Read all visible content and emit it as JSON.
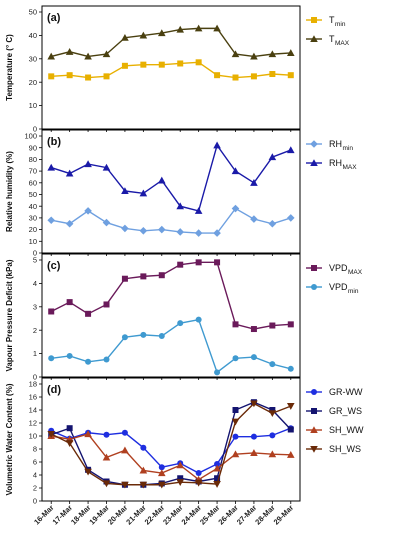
{
  "x_categories": [
    "16-Mar",
    "17-Mar",
    "18-Mar",
    "19-Mar",
    "20-Mar",
    "21-Mar",
    "22-Mar",
    "23-Mar",
    "24-Mar",
    "25-Mar",
    "26-Mar",
    "27-Mar",
    "28-Mar",
    "29-Mar"
  ],
  "chart_data": [
    {
      "type": "line",
      "panel_label": "(a)",
      "ylabel": "Temperature (° C)",
      "ylim": [
        0,
        50
      ],
      "yticks": [
        0,
        10,
        20,
        30,
        40,
        50
      ],
      "grid": false,
      "legend_position": "right",
      "series": [
        {
          "name": "T",
          "sub": "min",
          "color": "#e8b000",
          "marker": "square",
          "values": [
            22.5,
            23,
            22,
            22.5,
            27,
            27.5,
            27.5,
            28,
            28.5,
            23,
            22,
            22.5,
            23.5,
            23
          ]
        },
        {
          "name": "T",
          "sub": "MAX",
          "color": "#4a4010",
          "marker": "triangle",
          "values": [
            31,
            33,
            31,
            32,
            39,
            40,
            41,
            42.5,
            43,
            43,
            32,
            31,
            32,
            32.5
          ]
        }
      ]
    },
    {
      "type": "line",
      "panel_label": "(b)",
      "ylabel": "Relative humidity (%)",
      "ylim": [
        0,
        100
      ],
      "yticks": [
        0,
        10,
        20,
        30,
        40,
        50,
        60,
        70,
        80,
        90,
        100
      ],
      "grid": false,
      "legend_position": "right",
      "series": [
        {
          "name": "RH",
          "sub": "min",
          "color": "#6fa0e0",
          "marker": "diamond",
          "values": [
            28,
            25,
            36,
            26,
            21,
            19,
            20,
            18,
            17,
            17,
            38,
            29,
            25,
            30
          ]
        },
        {
          "name": "RH",
          "sub": "MAX",
          "color": "#1a1aa8",
          "marker": "triangle",
          "values": [
            73,
            68,
            76,
            73,
            53,
            51,
            62,
            40,
            36,
            92,
            70,
            60,
            82,
            88
          ]
        }
      ]
    },
    {
      "type": "line",
      "panel_label": "(c)",
      "ylabel": "Vapour Pressure Deficit (kPa)",
      "ylim": [
        0,
        5
      ],
      "yticks": [
        0,
        1,
        2,
        3,
        4,
        5
      ],
      "grid": false,
      "legend_position": "right",
      "series": [
        {
          "name": "VPD",
          "sub": "MAX",
          "color": "#6a1a5a",
          "marker": "square",
          "values": [
            2.8,
            3.2,
            2.7,
            3.1,
            4.2,
            4.3,
            4.35,
            4.8,
            4.9,
            4.9,
            2.25,
            2.05,
            2.2,
            2.25
          ]
        },
        {
          "name": "VPD",
          "sub": "min",
          "color": "#3f9ad0",
          "marker": "circle",
          "values": [
            0.8,
            0.9,
            0.65,
            0.75,
            1.7,
            1.8,
            1.75,
            2.3,
            2.45,
            0.2,
            0.8,
            0.85,
            0.55,
            0.35
          ]
        }
      ]
    },
    {
      "type": "line",
      "panel_label": "(d)",
      "ylabel": "Volumetric Water Content (%)",
      "ylim": [
        0,
        18
      ],
      "yticks": [
        0,
        2,
        4,
        6,
        8,
        10,
        12,
        14,
        16,
        18
      ],
      "grid": false,
      "legend_position": "right",
      "series": [
        {
          "name": "GR-WW",
          "color": "#1e2ee0",
          "marker": "circle",
          "values": [
            10.8,
            9.6,
            10.5,
            10.2,
            10.5,
            8.2,
            5.2,
            5.8,
            4.3,
            5.7,
            9.9,
            9.9,
            10.1,
            11.2
          ]
        },
        {
          "name": "GR_WS",
          "color": "#141470",
          "marker": "square",
          "values": [
            10.2,
            11.2,
            4.8,
            3.0,
            2.5,
            2.5,
            2.7,
            3.5,
            3.0,
            3.5,
            14.0,
            15.2,
            14.0,
            11.0
          ]
        },
        {
          "name": "SH_WW",
          "color": "#b04020",
          "marker": "triangle",
          "values": [
            10.0,
            9.5,
            10.3,
            6.7,
            7.8,
            4.7,
            4.3,
            5.5,
            3.3,
            5.0,
            7.2,
            7.4,
            7.2,
            7.1
          ]
        },
        {
          "name": "SH_WS",
          "color": "#6a2a08",
          "marker": "triangle-down",
          "values": [
            10.3,
            8.9,
            4.5,
            2.7,
            2.5,
            2.5,
            2.5,
            2.9,
            2.8,
            2.6,
            12.2,
            15.0,
            13.5,
            14.6
          ]
        }
      ]
    }
  ]
}
